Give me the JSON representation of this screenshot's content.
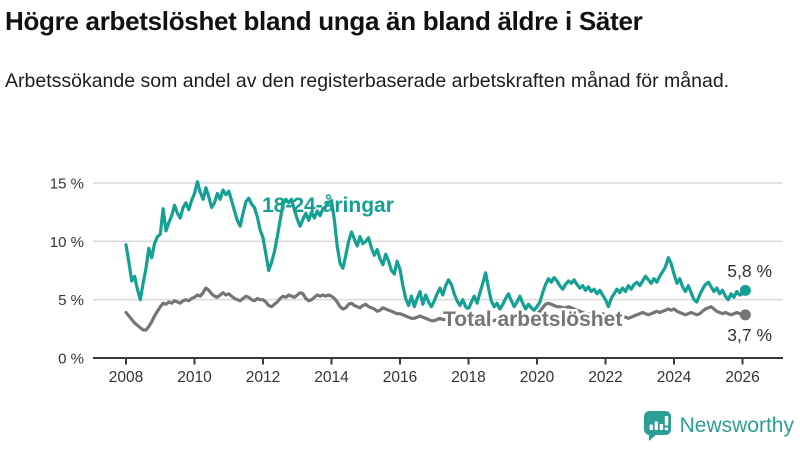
{
  "header": {
    "title": "Högre arbetslöshet bland unga än bland äldre i Säter",
    "subtitle": "Arbetssökande som andel av den registerbaserade arbetskraften månad för månad."
  },
  "footer": {
    "brand": "Newsworthy",
    "logo_icon": "newsworthy-speech-bubble-barchart-icon"
  },
  "colors": {
    "young_line": "#14a092",
    "total_line": "#757575",
    "grid": "#d9d9d9",
    "axis": "#3a3a3a",
    "tick_text": "#333333",
    "value_label": "#333333",
    "logo_teal": "#2b9e95"
  },
  "chart_data": {
    "type": "line",
    "title": "Högre arbetslöshet bland unga än bland äldre i Säter",
    "subtitle": "Arbetssökande som andel av den registerbaserade arbetskraften månad för månad.",
    "unit": "%",
    "x_start": "2008-01",
    "x_end": "2026-02",
    "x_frequency": "monthly",
    "ylim": [
      0,
      16
    ],
    "grid": "horizontal",
    "legend_position": "inline-labels",
    "yticks": [
      {
        "v": 0,
        "label": "0 %"
      },
      {
        "v": 5,
        "label": "5 %"
      },
      {
        "v": 10,
        "label": "10 %"
      },
      {
        "v": 15,
        "label": "15 %"
      }
    ],
    "xtick_labels": [
      "2008",
      "2010",
      "2012",
      "2014",
      "2016",
      "2018",
      "2020",
      "2022",
      "2024",
      "2026"
    ],
    "series": [
      {
        "name": "18-24-åringar",
        "color": "#14a092",
        "end_label": "5,8 %",
        "end_value": 5.8,
        "values": [
          9.7,
          8.2,
          6.6,
          7.0,
          5.9,
          5.0,
          6.4,
          7.7,
          9.4,
          8.6,
          9.8,
          10.4,
          10.6,
          12.8,
          10.9,
          11.6,
          12.2,
          13.1,
          12.4,
          12.0,
          12.9,
          13.3,
          12.7,
          13.5,
          14.1,
          15.1,
          14.2,
          13.6,
          14.6,
          13.8,
          12.9,
          13.3,
          14.1,
          13.6,
          14.4,
          14.0,
          14.3,
          13.5,
          12.6,
          11.8,
          11.3,
          12.4,
          13.4,
          13.7,
          13.2,
          12.9,
          12.1,
          11.0,
          10.3,
          8.9,
          7.5,
          8.2,
          9.1,
          10.4,
          11.8,
          13.2,
          13.6,
          13.3,
          13.6,
          12.7,
          11.9,
          11.3,
          11.9,
          12.4,
          11.8,
          12.5,
          12.0,
          12.6,
          12.2,
          12.8,
          13.0,
          13.3,
          13.5,
          11.8,
          9.6,
          8.1,
          7.7,
          8.8,
          10.0,
          10.8,
          10.2,
          9.6,
          10.4,
          9.8,
          10.0,
          10.3,
          9.4,
          8.8,
          9.3,
          8.5,
          8.0,
          8.9,
          8.3,
          7.5,
          7.2,
          8.3,
          7.6,
          6.2,
          5.1,
          4.5,
          5.3,
          4.4,
          5.1,
          5.7,
          4.6,
          5.4,
          4.8,
          4.4,
          4.9,
          5.5,
          6.0,
          5.4,
          6.2,
          6.7,
          6.3,
          5.5,
          4.9,
          4.5,
          5.0,
          4.4,
          4.2,
          4.8,
          5.3,
          4.7,
          5.6,
          6.4,
          7.3,
          6.0,
          4.9,
          4.4,
          4.7,
          4.2,
          4.6,
          5.1,
          5.5,
          4.9,
          4.4,
          4.8,
          5.3,
          4.7,
          4.2,
          4.6,
          4.3,
          4.1,
          4.4,
          4.8,
          5.6,
          6.3,
          6.8,
          6.5,
          6.9,
          6.6,
          6.2,
          5.9,
          6.3,
          6.6,
          6.4,
          6.7,
          6.3,
          6.0,
          6.2,
          5.8,
          6.1,
          5.7,
          5.9,
          5.5,
          5.8,
          5.4,
          5.0,
          4.4,
          5.1,
          5.5,
          5.9,
          5.6,
          6.0,
          5.7,
          6.2,
          5.9,
          6.3,
          6.5,
          6.2,
          6.6,
          7.0,
          6.7,
          6.4,
          6.8,
          6.5,
          7.0,
          7.4,
          7.8,
          8.6,
          8.1,
          7.2,
          6.4,
          6.8,
          6.1,
          5.7,
          6.2,
          5.6,
          5.0,
          4.8,
          5.4,
          5.9,
          6.3,
          6.5,
          6.1,
          5.7,
          6.0,
          5.5,
          5.8,
          5.3,
          5.0,
          5.5,
          5.2,
          5.7,
          5.4,
          5.5,
          5.8
        ]
      },
      {
        "name": "Total arbetslöshet",
        "color": "#757575",
        "end_label": "3,7 %",
        "end_value": 3.7,
        "values": [
          3.9,
          3.6,
          3.3,
          3.0,
          2.8,
          2.6,
          2.4,
          2.4,
          2.7,
          3.1,
          3.6,
          4.0,
          4.4,
          4.7,
          4.6,
          4.8,
          4.7,
          4.9,
          4.8,
          4.7,
          4.9,
          5.0,
          4.9,
          5.1,
          5.2,
          5.4,
          5.3,
          5.6,
          6.0,
          5.8,
          5.5,
          5.3,
          5.2,
          5.4,
          5.6,
          5.4,
          5.5,
          5.3,
          5.1,
          5.0,
          4.9,
          5.1,
          5.3,
          5.2,
          5.0,
          4.9,
          5.1,
          5.0,
          5.0,
          4.8,
          4.5,
          4.4,
          4.6,
          4.8,
          5.1,
          5.3,
          5.2,
          5.4,
          5.3,
          5.2,
          5.4,
          5.6,
          5.5,
          5.1,
          4.9,
          5.0,
          5.2,
          5.4,
          5.3,
          5.4,
          5.3,
          5.4,
          5.3,
          5.1,
          4.8,
          4.4,
          4.2,
          4.3,
          4.6,
          4.7,
          4.5,
          4.4,
          4.3,
          4.5,
          4.6,
          4.4,
          4.3,
          4.2,
          4.0,
          4.1,
          4.3,
          4.2,
          4.1,
          4.0,
          3.9,
          3.8,
          3.8,
          3.7,
          3.6,
          3.5,
          3.4,
          3.4,
          3.5,
          3.6,
          3.5,
          3.4,
          3.3,
          3.2,
          3.2,
          3.3,
          3.4,
          3.3,
          3.3,
          3.4,
          3.5,
          3.4,
          3.3,
          3.3,
          3.4,
          3.3,
          3.3,
          3.4,
          3.3,
          3.2,
          3.2,
          3.3,
          3.4,
          3.3,
          3.2,
          3.2,
          3.3,
          3.2,
          3.3,
          3.4,
          3.3,
          3.2,
          3.3,
          3.4,
          3.5,
          3.4,
          3.3,
          3.4,
          3.5,
          3.6,
          3.8,
          4.0,
          4.3,
          4.6,
          4.7,
          4.6,
          4.5,
          4.4,
          4.4,
          4.3,
          4.3,
          4.4,
          4.3,
          4.2,
          4.1,
          4.0,
          3.9,
          3.8,
          3.8,
          3.7,
          3.6,
          3.6,
          3.7,
          3.8,
          3.7,
          3.6,
          3.5,
          3.4,
          3.4,
          3.5,
          3.6,
          3.5,
          3.4,
          3.5,
          3.6,
          3.7,
          3.8,
          3.9,
          3.8,
          3.7,
          3.8,
          3.9,
          4.0,
          3.9,
          4.0,
          4.1,
          4.2,
          4.1,
          4.2,
          4.0,
          3.9,
          3.8,
          3.7,
          3.8,
          3.9,
          3.8,
          3.7,
          3.8,
          4.0,
          4.2,
          4.3,
          4.4,
          4.2,
          4.0,
          3.9,
          3.8,
          3.9,
          3.8,
          3.7,
          3.8,
          3.9,
          3.8,
          3.8,
          3.7
        ]
      }
    ]
  }
}
